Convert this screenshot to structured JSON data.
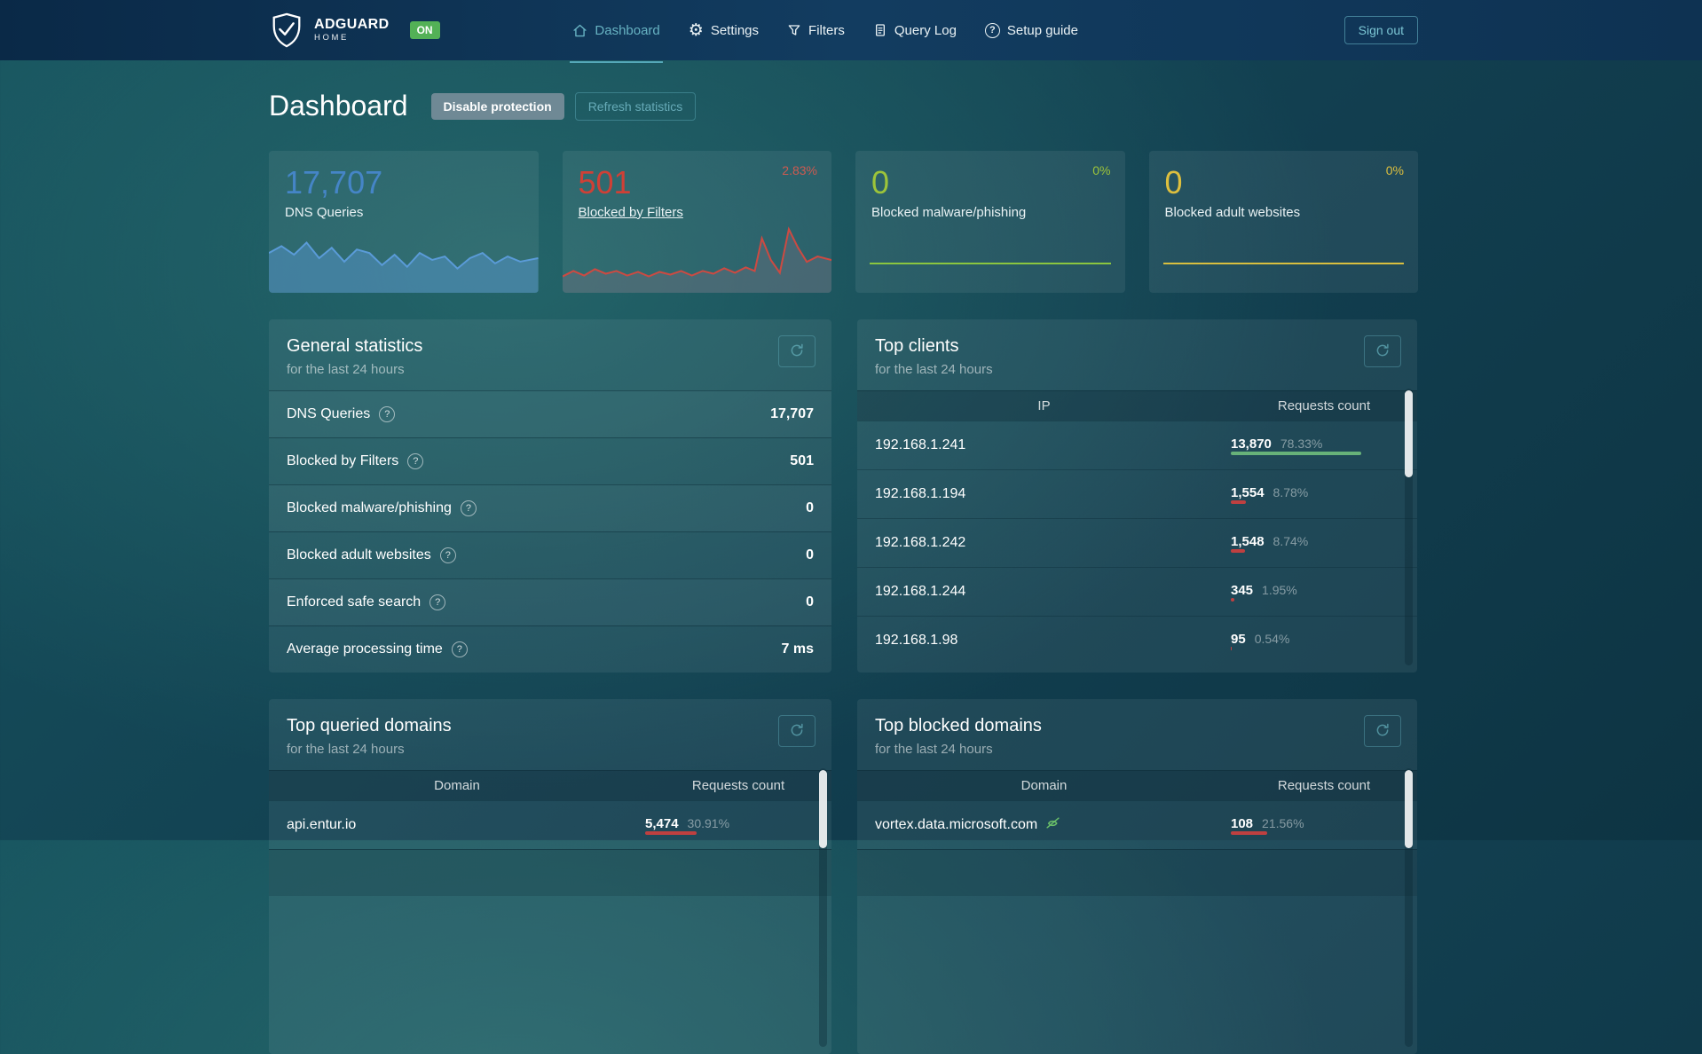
{
  "colors": {
    "accent_teal": "#67b2c2",
    "brand_green": "#53b156",
    "stat_blue": "#4585c7",
    "stat_red": "#cf4036",
    "stat_green": "#9dc43a",
    "stat_yellow": "#debf3e",
    "bar_green": "#67b279",
    "bar_red": "#bf4040"
  },
  "navbar": {
    "brand": {
      "name": "ADGUARD",
      "sub": "HOME",
      "status_badge": "ON"
    },
    "items": [
      {
        "label": "Dashboard"
      },
      {
        "label": "Settings"
      },
      {
        "label": "Filters"
      },
      {
        "label": "Query Log"
      },
      {
        "label": "Setup guide"
      }
    ],
    "sign_out": "Sign out"
  },
  "page": {
    "title": "Dashboard",
    "disable_protection_label": "Disable protection",
    "refresh_statistics_label": "Refresh statistics"
  },
  "stat_cards": [
    {
      "value": "17,707",
      "label": "DNS Queries"
    },
    {
      "value": "501",
      "label": "Blocked by Filters",
      "percent": "2.83%"
    },
    {
      "value": "0",
      "label": "Blocked malware/phishing",
      "percent": "0%"
    },
    {
      "value": "0",
      "label": "Blocked adult websites",
      "percent": "0%"
    }
  ],
  "general_stats": {
    "title": "General statistics",
    "subtitle": "for the last 24 hours",
    "rows": [
      {
        "label": "DNS Queries",
        "value": "17,707"
      },
      {
        "label": "Blocked by Filters",
        "value": "501"
      },
      {
        "label": "Blocked malware/phishing",
        "value": "0"
      },
      {
        "label": "Blocked adult websites",
        "value": "0"
      },
      {
        "label": "Enforced safe search",
        "value": "0"
      },
      {
        "label": "Average processing time",
        "value": "7 ms"
      }
    ]
  },
  "top_clients": {
    "title": "Top clients",
    "subtitle": "for the last 24 hours",
    "columns": {
      "main": "IP",
      "count": "Requests count"
    },
    "rows": [
      {
        "ip": "192.168.1.241",
        "count": "13,870",
        "percent": "78.33%",
        "fill": 78.33,
        "bar": "green"
      },
      {
        "ip": "192.168.1.194",
        "count": "1,554",
        "percent": "8.78%",
        "fill": 8.78,
        "bar": "red"
      },
      {
        "ip": "192.168.1.242",
        "count": "1,548",
        "percent": "8.74%",
        "fill": 8.74,
        "bar": "red"
      },
      {
        "ip": "192.168.1.244",
        "count": "345",
        "percent": "1.95%",
        "fill": 1.95,
        "bar": "red"
      },
      {
        "ip": "192.168.1.98",
        "count": "95",
        "percent": "0.54%",
        "fill": 0.54,
        "bar": "red"
      }
    ]
  },
  "top_queried_domains": {
    "title": "Top queried domains",
    "subtitle": "for the last 24 hours",
    "columns": {
      "main": "Domain",
      "count": "Requests count"
    },
    "rows": [
      {
        "domain": "api.entur.io",
        "count": "5,474",
        "percent": "30.91%",
        "fill": 30.91,
        "bar": "red"
      }
    ]
  },
  "top_blocked_domains": {
    "title": "Top blocked domains",
    "subtitle": "for the last 24 hours",
    "columns": {
      "main": "Domain",
      "count": "Requests count"
    },
    "rows": [
      {
        "domain": "vortex.data.microsoft.com",
        "count": "108",
        "percent": "21.56%",
        "fill": 21.56,
        "bar": "red"
      }
    ]
  }
}
